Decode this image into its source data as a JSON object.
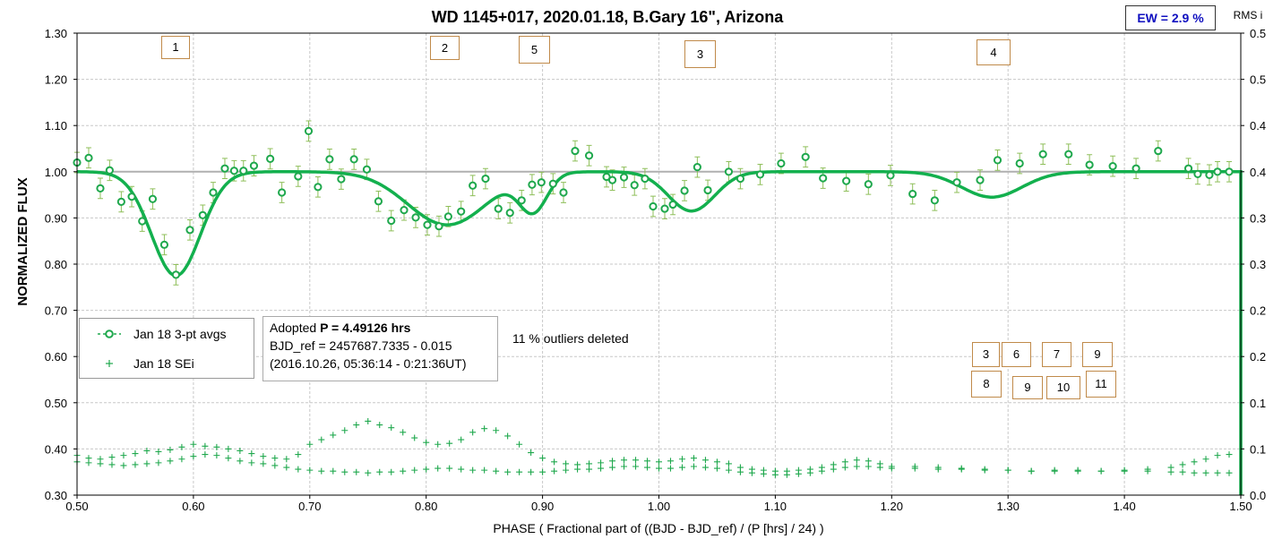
{
  "chart_data": {
    "type": "scatter",
    "title": "WD 1145+017, 2020.01.18, B.Gary 16\", Arizona",
    "xlabel": "PHASE ( Fractional part of ((BJD - BJD_ref) / (P [hrs] / 24) )",
    "ylabel": "NORMALIZED FLUX",
    "y2label": "RMS i",
    "xlim": [
      0.5,
      1.5
    ],
    "ylim": [
      0.3,
      1.3
    ],
    "y2lim": [
      0.0,
      0.5
    ],
    "x_ticks": [
      "0.50",
      "0.60",
      "0.70",
      "0.80",
      "0.90",
      "1.00",
      "1.10",
      "1.20",
      "1.30",
      "1.40",
      "1.50"
    ],
    "y_ticks": [
      "0.30",
      "0.40",
      "0.50",
      "0.60",
      "0.70",
      "0.80",
      "0.90",
      "1.00",
      "1.10",
      "1.20",
      "1.30"
    ],
    "y2_ticks": [
      "0.0",
      "0.1",
      "0.1",
      "0.2",
      "0.2",
      "0.3",
      "0.3",
      "0.4",
      "0.4",
      "0.5",
      "0.5"
    ],
    "grid": true,
    "reference_line": 1.0,
    "colors": {
      "series": "#1fa84d",
      "model": "#13b04e",
      "reference": "#b0b0b0",
      "grid": "#c8c8c8",
      "marker_border": "#c08a4a",
      "ew_text": "#1010c0"
    },
    "series": [
      {
        "name": "Jan 18 3-pt avgs",
        "marker": "open-circle",
        "x": [
          0.5,
          0.51,
          0.52,
          0.528,
          0.538,
          0.547,
          0.556,
          0.565,
          0.575,
          0.585,
          0.597,
          0.608,
          0.617,
          0.627,
          0.635,
          0.643,
          0.652,
          0.666,
          0.676,
          0.69,
          0.699,
          0.707,
          0.717,
          0.727,
          0.738,
          0.749,
          0.759,
          0.77,
          0.781,
          0.791,
          0.801,
          0.811,
          0.819,
          0.83,
          0.84,
          0.851,
          0.862,
          0.872,
          0.882,
          0.891,
          0.899,
          0.909,
          0.918,
          0.928,
          0.94,
          0.955,
          0.96,
          0.97,
          0.979,
          0.988,
          0.995,
          1.005,
          1.012,
          1.022,
          1.033,
          1.042,
          1.06,
          1.07,
          1.087,
          1.105,
          1.126,
          1.141,
          1.161,
          1.18,
          1.199,
          1.218,
          1.237,
          1.256,
          1.276,
          1.291,
          1.31,
          1.33,
          1.352,
          1.37,
          1.39,
          1.41,
          1.429,
          1.455,
          1.463,
          1.473,
          1.48,
          1.49
        ],
        "y": [
          1.02,
          1.03,
          0.964,
          1.003,
          0.935,
          0.946,
          0.893,
          0.941,
          0.842,
          0.777,
          0.874,
          0.906,
          0.955,
          1.007,
          1.002,
          1.002,
          1.013,
          1.028,
          0.955,
          0.99,
          1.088,
          0.967,
          1.027,
          0.984,
          1.027,
          1.005,
          0.936,
          0.894,
          0.917,
          0.901,
          0.885,
          0.882,
          0.903,
          0.914,
          0.97,
          0.985,
          0.92,
          0.911,
          0.938,
          0.972,
          0.977,
          0.974,
          0.955,
          1.045,
          1.035,
          0.989,
          0.982,
          0.988,
          0.971,
          0.985,
          0.925,
          0.92,
          0.929,
          0.959,
          1.01,
          0.96,
          1.0,
          0.985,
          0.994,
          1.018,
          1.032,
          0.986,
          0.98,
          0.973,
          0.992,
          0.952,
          0.938,
          0.977,
          0.982,
          1.025,
          1.018,
          1.038,
          1.038,
          1.015,
          1.012,
          1.007,
          1.045,
          1.007,
          0.995,
          0.993,
          1.0,
          1.0
        ]
      },
      {
        "name": "Jan 18 SEi",
        "marker": "plus",
        "axis": "right",
        "x": [
          0.5,
          0.51,
          0.52,
          0.53,
          0.54,
          0.55,
          0.56,
          0.57,
          0.58,
          0.59,
          0.6,
          0.61,
          0.62,
          0.63,
          0.64,
          0.65,
          0.66,
          0.67,
          0.68,
          0.69,
          0.7,
          0.71,
          0.72,
          0.73,
          0.74,
          0.75,
          0.76,
          0.77,
          0.78,
          0.79,
          0.8,
          0.81,
          0.82,
          0.83,
          0.84,
          0.85,
          0.86,
          0.87,
          0.88,
          0.89,
          0.9,
          0.91,
          0.92,
          0.93,
          0.94,
          0.95,
          0.96,
          0.97,
          0.98,
          0.99,
          1.0,
          1.01,
          1.02,
          1.03,
          1.04,
          1.05,
          1.06,
          1.07,
          1.08,
          1.09,
          1.1,
          1.11,
          1.12,
          1.13,
          1.14,
          1.15,
          1.16,
          1.17,
          1.18,
          1.19,
          1.2,
          1.22,
          1.24,
          1.26,
          1.28,
          1.3,
          1.32,
          1.34,
          1.36,
          1.38,
          1.4,
          1.42,
          1.44,
          1.45,
          1.46,
          1.47,
          1.48,
          1.49
        ],
        "y": [
          0.043,
          0.04,
          0.039,
          0.041,
          0.043,
          0.045,
          0.048,
          0.047,
          0.049,
          0.052,
          0.055,
          0.053,
          0.052,
          0.05,
          0.048,
          0.045,
          0.042,
          0.04,
          0.039,
          0.044,
          0.055,
          0.06,
          0.065,
          0.07,
          0.076,
          0.08,
          0.076,
          0.073,
          0.068,
          0.062,
          0.057,
          0.055,
          0.056,
          0.06,
          0.068,
          0.072,
          0.07,
          0.064,
          0.055,
          0.046,
          0.04,
          0.036,
          0.034,
          0.033,
          0.034,
          0.035,
          0.037,
          0.038,
          0.038,
          0.037,
          0.036,
          0.037,
          0.039,
          0.04,
          0.038,
          0.036,
          0.034,
          0.03,
          0.028,
          0.027,
          0.026,
          0.026,
          0.027,
          0.028,
          0.03,
          0.033,
          0.036,
          0.038,
          0.037,
          0.034,
          0.031,
          0.031,
          0.03,
          0.029,
          0.028,
          0.027,
          0.026,
          0.027,
          0.027,
          0.026,
          0.027,
          0.028,
          0.03,
          0.033,
          0.036,
          0.039,
          0.043,
          0.044
        ]
      },
      {
        "name": "",
        "marker": "plus",
        "axis": "right",
        "x": [
          0.5,
          0.51,
          0.52,
          0.53,
          0.54,
          0.55,
          0.56,
          0.57,
          0.58,
          0.59,
          0.6,
          0.61,
          0.62,
          0.63,
          0.64,
          0.65,
          0.66,
          0.67,
          0.68,
          0.69,
          0.7,
          0.71,
          0.72,
          0.73,
          0.74,
          0.75,
          0.76,
          0.77,
          0.78,
          0.79,
          0.8,
          0.81,
          0.82,
          0.83,
          0.84,
          0.85,
          0.86,
          0.87,
          0.88,
          0.89,
          0.9,
          0.91,
          0.92,
          0.93,
          0.94,
          0.95,
          0.96,
          0.97,
          0.98,
          0.99,
          1.0,
          1.01,
          1.02,
          1.03,
          1.04,
          1.05,
          1.06,
          1.07,
          1.08,
          1.09,
          1.1,
          1.11,
          1.12,
          1.13,
          1.14,
          1.15,
          1.16,
          1.17,
          1.18,
          1.19,
          1.2,
          1.22,
          1.24,
          1.26,
          1.28,
          1.3,
          1.32,
          1.34,
          1.36,
          1.38,
          1.4,
          1.42,
          1.44,
          1.45,
          1.46,
          1.47,
          1.48,
          1.49
        ],
        "y": [
          0.036,
          0.035,
          0.034,
          0.033,
          0.032,
          0.033,
          0.034,
          0.035,
          0.037,
          0.039,
          0.042,
          0.044,
          0.043,
          0.04,
          0.037,
          0.035,
          0.034,
          0.032,
          0.03,
          0.028,
          0.027,
          0.026,
          0.026,
          0.025,
          0.025,
          0.024,
          0.025,
          0.025,
          0.026,
          0.027,
          0.028,
          0.029,
          0.029,
          0.028,
          0.027,
          0.027,
          0.026,
          0.025,
          0.025,
          0.025,
          0.025,
          0.026,
          0.027,
          0.028,
          0.028,
          0.029,
          0.03,
          0.031,
          0.031,
          0.03,
          0.029,
          0.029,
          0.03,
          0.031,
          0.03,
          0.029,
          0.027,
          0.025,
          0.024,
          0.023,
          0.022,
          0.022,
          0.023,
          0.024,
          0.026,
          0.028,
          0.03,
          0.031,
          0.031,
          0.03,
          0.029,
          0.029,
          0.028,
          0.028,
          0.027,
          0.027,
          0.026,
          0.026,
          0.026,
          0.026,
          0.026,
          0.026,
          0.025,
          0.025,
          0.024,
          0.024,
          0.024,
          0.024
        ]
      }
    ],
    "model_dips": [
      {
        "center": 0.585,
        "depth": 0.225,
        "width": 0.021
      },
      {
        "center": 0.818,
        "depth": 0.115,
        "width": 0.034
      },
      {
        "center": 0.892,
        "depth": 0.08,
        "width": 0.012
      },
      {
        "center": 1.028,
        "depth": 0.085,
        "width": 0.02
      },
      {
        "center": 1.286,
        "depth": 0.055,
        "width": 0.026
      }
    ]
  },
  "ew_box": "EW = 2.9 %",
  "legend": [
    "Jan 18 3-pt avgs",
    "Jan 18 SEi"
  ],
  "info": {
    "line1_prefix": "Adopted ",
    "line1_bold": "P = 4.49126 hrs",
    "line2": "BJD_ref = 2457687.7335 - 0.015",
    "line3": "(2016.10.26, 05:36:14 - 0:21:36UT)"
  },
  "note": "11 % outliers deleted",
  "dip_markers": [
    "1",
    "2",
    "5",
    "3",
    "4"
  ],
  "extra_markers": [
    "3",
    "6",
    "7",
    "9",
    "8",
    "9",
    "10",
    "11"
  ]
}
